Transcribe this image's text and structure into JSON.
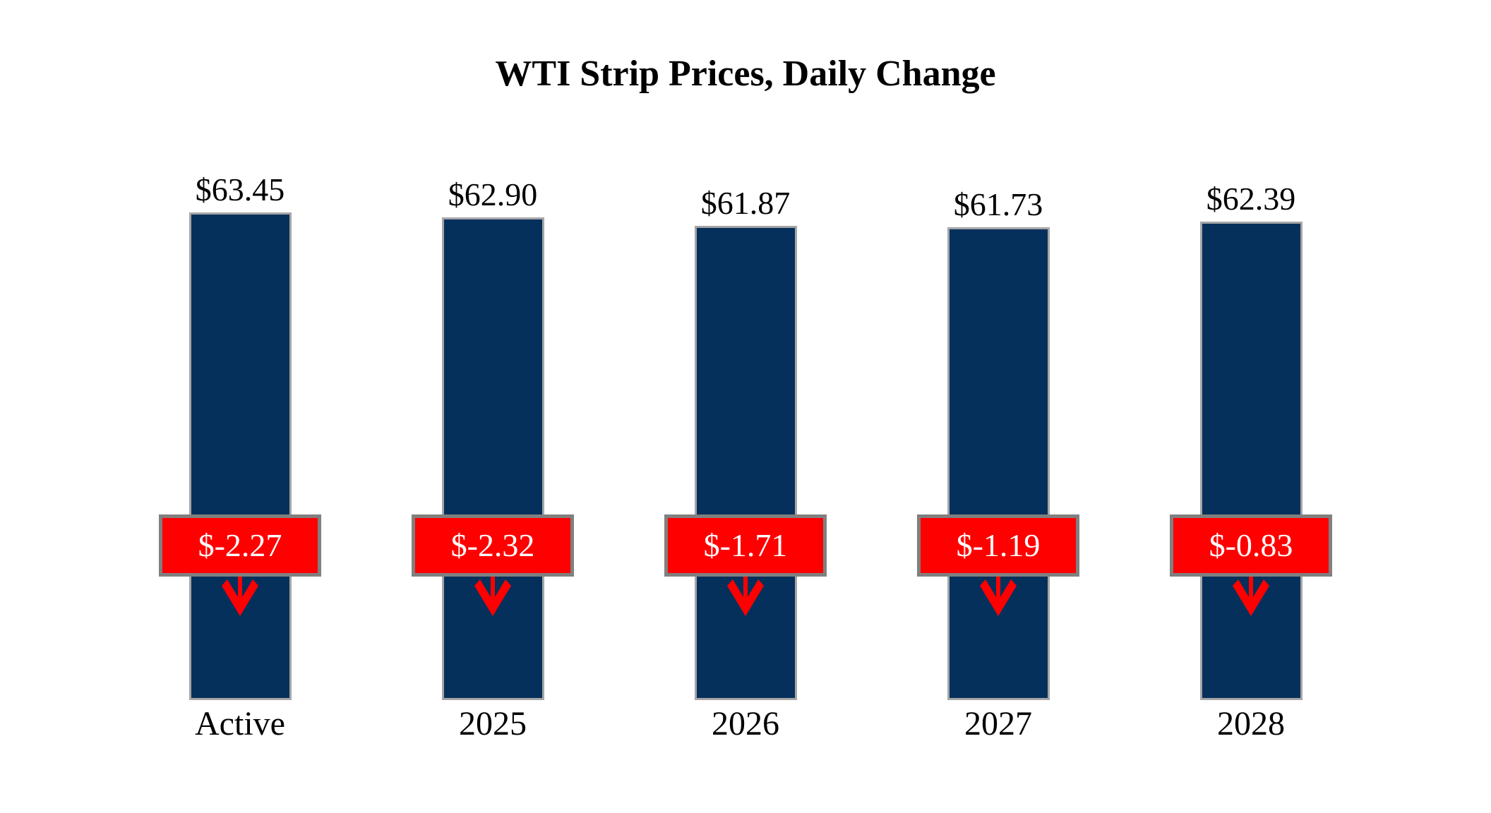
{
  "title": "WTI Strip Prices, Daily Change",
  "chart_data": {
    "type": "bar",
    "title": "WTI Strip Prices, Daily Change",
    "categories": [
      "Active",
      "2025",
      "2026",
      "2027",
      "2028"
    ],
    "series": [
      {
        "name": "WTI Strip Price",
        "values": [
          63.45,
          62.9,
          61.87,
          61.73,
          62.39
        ],
        "labels": [
          "$63.45",
          "$62.90",
          "$61.87",
          "$61.73",
          "$62.39"
        ]
      },
      {
        "name": "Daily Change",
        "values": [
          -2.27,
          -2.32,
          -1.71,
          -1.19,
          -0.83
        ],
        "labels": [
          "$-2.27",
          "$-2.32",
          "$-1.71",
          "$-1.19",
          "$-0.83"
        ]
      }
    ],
    "legend": "none",
    "grid": "off",
    "axes_visible": false,
    "colors": {
      "bar_fill": "#06305c",
      "bar_border": "#a6a6a6",
      "badge_fill": "#ff0000",
      "badge_border": "#808080",
      "badge_text": "#ffffff",
      "label_text": "#000000",
      "arrow": "#ff0000",
      "background": "#ffffff"
    }
  }
}
